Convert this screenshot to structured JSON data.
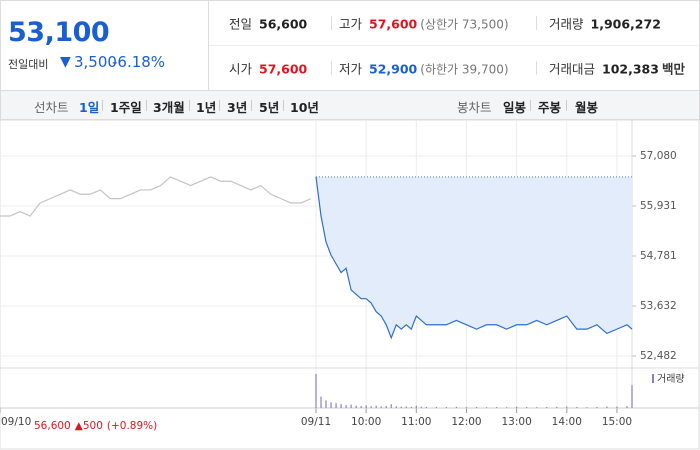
{
  "quote": {
    "price": "53,100",
    "change_caption": "전일대비",
    "change": "3,500",
    "change_rate": "-6.18%"
  },
  "stats": [
    {
      "label": "전일",
      "value": "56,600",
      "color": "#222222"
    },
    {
      "label": "고가",
      "value": "57,600",
      "note": "(상한가 73,500)",
      "color": "#e0161e"
    },
    {
      "label": "거래량",
      "value": "1,906,272",
      "color": "#222222"
    },
    {
      "label": "시가",
      "value": "57,600",
      "color": "#e0161e"
    },
    {
      "label": "저가",
      "value": "52,900",
      "note": "(하한가 39,700)",
      "color": "#1a5fd1"
    },
    {
      "label": "거래대금",
      "value": "102,383",
      "unit": "백만",
      "color": "#222222"
    }
  ],
  "line_tabs": {
    "label": "선차트",
    "items": [
      "1일",
      "1주일",
      "3개월",
      "1년",
      "3년",
      "5년",
      "10년"
    ],
    "selected": 0
  },
  "candle_tabs": {
    "label": "봉차트",
    "items": [
      "일봉",
      "주봉",
      "월봉"
    ]
  },
  "chart_data": {
    "type": "line",
    "xlim": [
      0,
      756
    ],
    "xticks": [
      {
        "value": 0,
        "label": "09/10"
      },
      {
        "value": 378,
        "label": "09/11"
      },
      {
        "value": 438,
        "label": "10:00"
      },
      {
        "value": 498,
        "label": "11:00"
      },
      {
        "value": 558,
        "label": "12:00"
      },
      {
        "value": 618,
        "label": "13:00"
      },
      {
        "value": 678,
        "label": "14:00"
      },
      {
        "value": 738,
        "label": "15:00"
      }
    ],
    "ylim": [
      52252,
      57816
    ],
    "yticks": [
      {
        "value": 52482,
        "label": "52,482"
      },
      {
        "value": 53632,
        "label": "53,632"
      },
      {
        "value": 54781,
        "label": "54,781"
      },
      {
        "value": 55931,
        "label": "55,931"
      },
      {
        "value": 57080,
        "label": "57,080"
      }
    ],
    "grid": true,
    "series": [
      {
        "color": "#c4c4c4",
        "x": [
          0,
          12,
          24,
          36,
          48,
          60,
          72,
          84,
          96,
          108,
          120,
          132,
          144,
          156,
          168,
          180,
          192,
          204,
          216,
          228,
          240,
          252,
          264,
          276,
          288,
          300,
          312,
          324,
          336,
          348,
          360,
          372
        ],
        "values": [
          55700,
          55700,
          55800,
          55700,
          56000,
          56100,
          56200,
          56300,
          56200,
          56200,
          56300,
          56100,
          56100,
          56200,
          56300,
          56300,
          56400,
          56600,
          56500,
          56400,
          56500,
          56600,
          56500,
          56500,
          56400,
          56300,
          56400,
          56200,
          56100,
          56000,
          56000,
          56100
        ]
      },
      {
        "color": "#2f6fd0",
        "fill": "#e2ecfa",
        "x": [
          378,
          384,
          390,
          396,
          402,
          408,
          414,
          420,
          426,
          432,
          438,
          444,
          450,
          456,
          462,
          468,
          474,
          480,
          486,
          492,
          498,
          504,
          510,
          522,
          534,
          546,
          558,
          570,
          582,
          594,
          606,
          618,
          630,
          642,
          654,
          666,
          678,
          690,
          702,
          714,
          726,
          738,
          750,
          756
        ],
        "values": [
          56600,
          55700,
          55100,
          54800,
          54600,
          54400,
          54500,
          54000,
          53900,
          53800,
          53800,
          53700,
          53500,
          53400,
          53200,
          52900,
          53200,
          53100,
          53200,
          53100,
          53400,
          53300,
          53200,
          53200,
          53200,
          53300,
          53200,
          53100,
          53200,
          53200,
          53100,
          53200,
          53200,
          53300,
          53200,
          53300,
          53400,
          53100,
          53100,
          53200,
          53000,
          53100,
          53200,
          53100
        ]
      }
    ],
    "prev_close": 56600,
    "annotation": {
      "prev_close": "56,600",
      "change": "500",
      "change_rate": "(+0.89%)"
    },
    "volume": {
      "name": "거래량",
      "color": "#8a7ccf",
      "ylim": [
        0,
        200000
      ],
      "x": [
        378,
        384,
        390,
        396,
        402,
        408,
        414,
        420,
        426,
        432,
        438,
        444,
        450,
        456,
        462,
        468,
        474,
        480,
        486,
        492,
        498,
        504,
        510,
        522,
        534,
        546,
        558,
        570,
        582,
        594,
        606,
        618,
        630,
        642,
        654,
        666,
        678,
        690,
        702,
        714,
        726,
        738,
        750,
        756
      ],
      "values": [
        180000,
        60000,
        40000,
        30000,
        25000,
        20000,
        15000,
        18000,
        12000,
        10000,
        14000,
        9000,
        12000,
        8000,
        10000,
        20000,
        9000,
        7000,
        8000,
        6000,
        12000,
        7000,
        6000,
        5000,
        5000,
        6000,
        4000,
        5000,
        4000,
        5000,
        4000,
        6000,
        5000,
        4000,
        5000,
        6000,
        7000,
        5000,
        4000,
        5000,
        8000,
        7000,
        10000,
        120000
      ]
    }
  }
}
